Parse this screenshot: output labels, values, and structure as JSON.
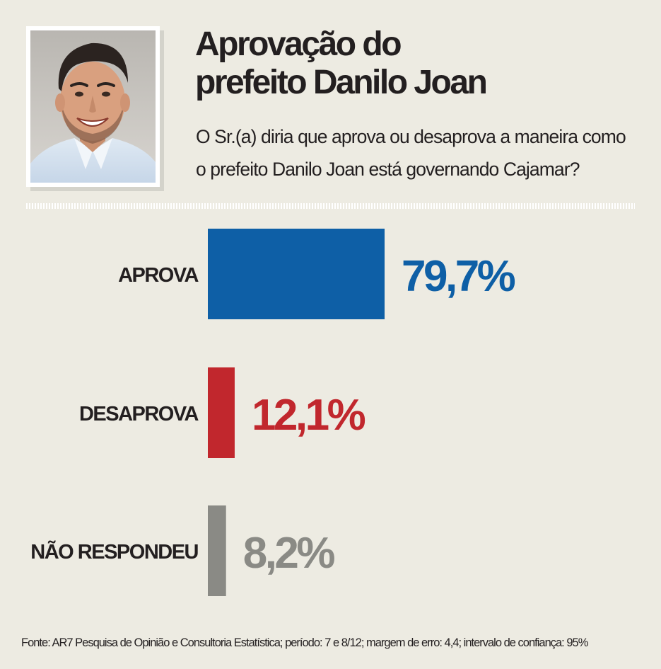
{
  "header": {
    "title_line1": "Aprovação do",
    "title_line2": "prefeito Danilo Joan",
    "question_line1": "O Sr.(a) diria que aprova ou desaprova a maneira como",
    "question_line2": "o prefeito Danilo Joan está governando Cajamar?"
  },
  "chart_data": {
    "type": "bar",
    "orientation": "horizontal",
    "title": "Aprovação do prefeito Danilo Joan",
    "categories": [
      "APROVA",
      "DESAPROVA",
      "NÃO RESPONDEU"
    ],
    "values": [
      79.7,
      12.1,
      8.2
    ],
    "value_labels": [
      "79,7%",
      "12,1%",
      "8,2%"
    ],
    "colors": [
      "#0e5fa6",
      "#c1272d",
      "#8a8a85"
    ],
    "unit": "%",
    "xlim": [
      0,
      100
    ]
  },
  "footer": {
    "source": "Fonte: AR7 Pesquisa de Opinião e Consultoria Estatística; período: 7 e 8/12; margem de erro: 4,4; intervalo de confiança: 95%"
  }
}
